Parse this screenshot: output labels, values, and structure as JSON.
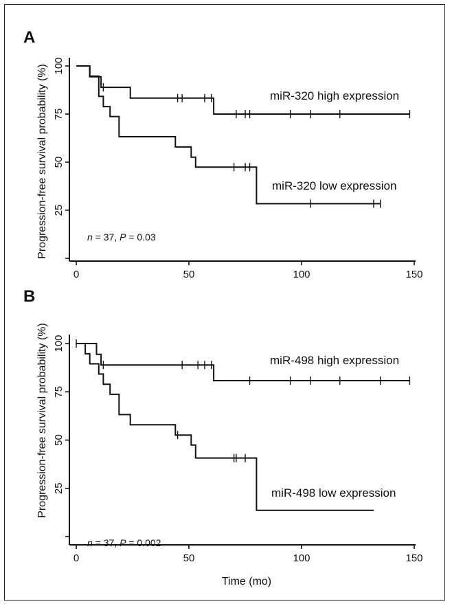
{
  "chart_data": [
    {
      "type": "line",
      "panel_label": "A",
      "xlabel": "",
      "ylabel": "Progression-free survival probability (%)",
      "xlim": [
        0,
        150
      ],
      "ylim": [
        0,
        100
      ],
      "xticks": [
        "0",
        "50",
        "100",
        "150"
      ],
      "yticks": [
        "25",
        "50",
        "75",
        "100"
      ],
      "annotation": {
        "n_label": "n",
        "n_text": " = 37, ",
        "p_label": "P",
        "p_text": " = 0.03"
      },
      "series": [
        {
          "name": "miR-320 high expression",
          "steps": [
            [
              0,
              100
            ],
            [
              6,
              100
            ],
            [
              6,
              94.4
            ],
            [
              11,
              94.4
            ],
            [
              11,
              88.9
            ],
            [
              24,
              88.9
            ],
            [
              24,
              83.3
            ],
            [
              61,
              83.3
            ],
            [
              61,
              75
            ],
            [
              148,
              75
            ]
          ],
          "censored": [
            [
              12,
              88.9
            ],
            [
              45,
              83.3
            ],
            [
              47,
              83.3
            ],
            [
              57,
              83.3
            ],
            [
              60,
              83.3
            ],
            [
              71,
              75
            ],
            [
              75,
              75
            ],
            [
              77,
              75
            ],
            [
              95,
              75
            ],
            [
              104,
              75
            ],
            [
              117,
              75
            ],
            [
              148,
              75
            ]
          ]
        },
        {
          "name": "miR-320 low expression",
          "steps": [
            [
              0,
              100
            ],
            [
              6,
              100
            ],
            [
              6,
              94.7
            ],
            [
              10,
              94.7
            ],
            [
              10,
              84.2
            ],
            [
              12,
              84.2
            ],
            [
              12,
              78.9
            ],
            [
              15,
              78.9
            ],
            [
              15,
              73.7
            ],
            [
              19,
              73.7
            ],
            [
              19,
              63.2
            ],
            [
              44,
              63.2
            ],
            [
              44,
              57.9
            ],
            [
              51,
              57.9
            ],
            [
              51,
              52.6
            ],
            [
              53,
              52.6
            ],
            [
              53,
              47.4
            ],
            [
              80,
              47.4
            ],
            [
              80,
              28.4
            ],
            [
              135,
              28.4
            ]
          ],
          "censored": [
            [
              70,
              47.4
            ],
            [
              75,
              47.4
            ],
            [
              77,
              47.4
            ],
            [
              104,
              28.4
            ],
            [
              132,
              28.4
            ],
            [
              135,
              28.4
            ]
          ]
        }
      ]
    },
    {
      "type": "line",
      "panel_label": "B",
      "xlabel": "Time (mo)",
      "ylabel": "Progression-free survival probability (%)",
      "xlim": [
        0,
        150
      ],
      "ylim": [
        0,
        100
      ],
      "xticks": [
        "0",
        "50",
        "100",
        "150"
      ],
      "yticks": [
        "25",
        "50",
        "75",
        "100"
      ],
      "annotation": {
        "n_label": "n",
        "n_text": " = 37, ",
        "p_label": "P",
        "p_text": " = 0.002"
      },
      "series": [
        {
          "name": "miR-498 high expression",
          "steps": [
            [
              0,
              100
            ],
            [
              9,
              100
            ],
            [
              9,
              94.4
            ],
            [
              11,
              94.4
            ],
            [
              11,
              88.9
            ],
            [
              61,
              88.9
            ],
            [
              61,
              80.8
            ],
            [
              148,
              80.8
            ]
          ],
          "censored": [
            [
              12,
              88.9
            ],
            [
              47,
              88.9
            ],
            [
              54,
              88.9
            ],
            [
              57,
              88.9
            ],
            [
              60,
              88.9
            ],
            [
              77,
              80.8
            ],
            [
              95,
              80.8
            ],
            [
              104,
              80.8
            ],
            [
              117,
              80.8
            ],
            [
              135,
              80.8
            ],
            [
              148,
              80.8
            ]
          ]
        },
        {
          "name": "miR-498 low expression",
          "steps": [
            [
              0,
              100
            ],
            [
              4,
              100
            ],
            [
              4,
              94.7
            ],
            [
              6,
              94.7
            ],
            [
              6,
              89.5
            ],
            [
              10,
              89.5
            ],
            [
              10,
              84.2
            ],
            [
              12,
              84.2
            ],
            [
              12,
              78.9
            ],
            [
              15,
              78.9
            ],
            [
              15,
              73.7
            ],
            [
              19,
              73.7
            ],
            [
              19,
              63.2
            ],
            [
              24,
              63.2
            ],
            [
              24,
              57.9
            ],
            [
              44,
              57.9
            ],
            [
              44,
              52.6
            ],
            [
              51,
              52.6
            ],
            [
              51,
              47.4
            ],
            [
              53,
              47.4
            ],
            [
              53,
              40.7
            ],
            [
              80,
              40.7
            ],
            [
              80,
              13.6
            ],
            [
              132,
              13.6
            ]
          ],
          "censored": [
            [
              0,
              100
            ],
            [
              45,
              52.6
            ],
            [
              70,
              40.7
            ],
            [
              71,
              40.7
            ],
            [
              75,
              40.7
            ]
          ]
        }
      ]
    }
  ]
}
